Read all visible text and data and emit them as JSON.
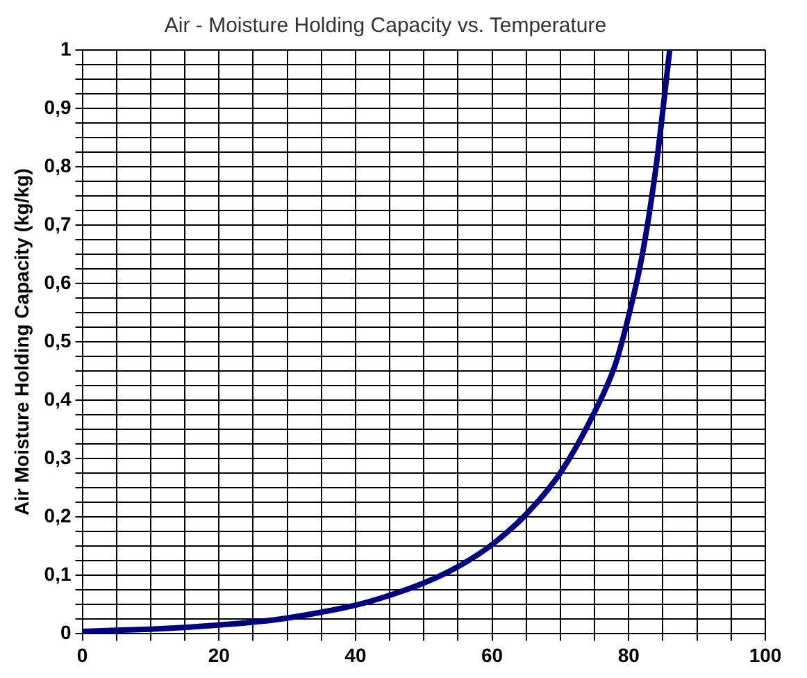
{
  "chart_data": {
    "type": "line",
    "title": "Air - Moisture Holding Capacity vs. Temperature",
    "ylabel": "Air Moisture Holding Capacity (kg/kg)",
    "x": [
      0,
      5,
      10,
      15,
      20,
      25,
      30,
      35,
      40,
      45,
      50,
      55,
      60,
      65,
      70,
      75,
      78,
      80,
      82,
      84,
      86
    ],
    "series": [
      {
        "color": "#000080",
        "values": [
          0.004,
          0.006,
          0.008,
          0.011,
          0.015,
          0.02,
          0.027,
          0.037,
          0.049,
          0.066,
          0.087,
          0.115,
          0.153,
          0.205,
          0.276,
          0.38,
          0.46,
          0.545,
          0.65,
          0.8,
          1.0
        ]
      }
    ],
    "xlim": [
      0,
      100
    ],
    "xticks": [
      0,
      {
        "value": 5,
        "label": null
      },
      {
        "value": 10,
        "label": null
      },
      {
        "value": 15,
        "label": null
      },
      20,
      {
        "value": 25,
        "label": null
      },
      {
        "value": 30,
        "label": null
      },
      {
        "value": 35,
        "label": null
      },
      40,
      {
        "value": 45,
        "label": null
      },
      {
        "value": 50,
        "label": null
      },
      {
        "value": 55,
        "label": null
      },
      60,
      {
        "value": 65,
        "label": null
      },
      {
        "value": 70,
        "label": null
      },
      {
        "value": 75,
        "label": null
      },
      80,
      {
        "value": 85,
        "label": null
      },
      {
        "value": 90,
        "label": null
      },
      {
        "value": 95,
        "label": null
      },
      100
    ],
    "ylim": [
      0,
      1
    ],
    "yticks": [
      0,
      {
        "value": 0.025,
        "label": null
      },
      {
        "value": 0.05,
        "label": null
      },
      {
        "value": 0.075,
        "label": null
      },
      {
        "value": 0.1,
        "label": "0,1"
      },
      {
        "value": 0.125,
        "label": null
      },
      {
        "value": 0.15,
        "label": null
      },
      {
        "value": 0.175,
        "label": null
      },
      {
        "value": 0.2,
        "label": "0,2"
      },
      {
        "value": 0.225,
        "label": null
      },
      {
        "value": 0.25,
        "label": null
      },
      {
        "value": 0.275,
        "label": null
      },
      {
        "value": 0.3,
        "label": "0,3"
      },
      {
        "value": 0.325,
        "label": null
      },
      {
        "value": 0.35,
        "label": null
      },
      {
        "value": 0.375,
        "label": null
      },
      {
        "value": 0.4,
        "label": "0,4"
      },
      {
        "value": 0.425,
        "label": null
      },
      {
        "value": 0.45,
        "label": null
      },
      {
        "value": 0.475,
        "label": null
      },
      {
        "value": 0.5,
        "label": "0,5"
      },
      {
        "value": 0.525,
        "label": null
      },
      {
        "value": 0.55,
        "label": null
      },
      {
        "value": 0.575,
        "label": null
      },
      {
        "value": 0.6,
        "label": "0,6"
      },
      {
        "value": 0.625,
        "label": null
      },
      {
        "value": 0.65,
        "label": null
      },
      {
        "value": 0.675,
        "label": null
      },
      {
        "value": 0.7,
        "label": "0,7"
      },
      {
        "value": 0.725,
        "label": null
      },
      {
        "value": 0.75,
        "label": null
      },
      {
        "value": 0.775,
        "label": null
      },
      {
        "value": 0.8,
        "label": "0,8"
      },
      {
        "value": 0.825,
        "label": null
      },
      {
        "value": 0.85,
        "label": null
      },
      {
        "value": 0.875,
        "label": null
      },
      {
        "value": 0.9,
        "label": "0,9"
      },
      {
        "value": 0.925,
        "label": null
      },
      {
        "value": 0.95,
        "label": null
      },
      {
        "value": 0.975,
        "label": null
      },
      1
    ],
    "grid": true,
    "legend": false,
    "marker": "none",
    "line_style": "solid"
  }
}
